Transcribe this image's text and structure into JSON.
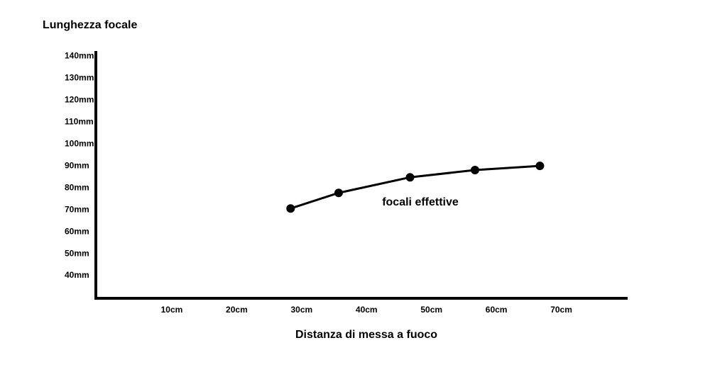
{
  "chart_data": {
    "type": "line",
    "title": "Lunghezza focale",
    "xlabel": "Distanza di messa a fuoco",
    "annotation": "focali effettive",
    "x": [
      28.3,
      35.7,
      46.7,
      56.7,
      66.7
    ],
    "series": [
      {
        "color": "#000000",
        "values": [
          70.6,
          77.7,
          84.8,
          88.1,
          90.0
        ]
      }
    ],
    "xlim": [
      -1.7,
      80
    ],
    "ylim": [
      29.7,
      142.3
    ],
    "xticks": [
      {
        "value": 10,
        "label": "10cm"
      },
      {
        "value": 20,
        "label": "20cm"
      },
      {
        "value": 30,
        "label": "30cm"
      },
      {
        "value": 40,
        "label": "40cm"
      },
      {
        "value": 50,
        "label": "50cm"
      },
      {
        "value": 60,
        "label": "60cm"
      },
      {
        "value": 70,
        "label": "70cm"
      }
    ],
    "yticks": [
      {
        "value": 40,
        "label": "40mm"
      },
      {
        "value": 50,
        "label": "50mm"
      },
      {
        "value": 60,
        "label": "60mm"
      },
      {
        "value": 70,
        "label": "70mm"
      },
      {
        "value": 80,
        "label": "80mm"
      },
      {
        "value": 90,
        "label": "90mm"
      },
      {
        "value": 100,
        "label": "100mm"
      },
      {
        "value": 110,
        "label": "110mm"
      },
      {
        "value": 120,
        "label": "120mm"
      },
      {
        "value": 130,
        "label": "130mm"
      },
      {
        "value": 140,
        "label": "140mm"
      }
    ],
    "grid": false
  }
}
